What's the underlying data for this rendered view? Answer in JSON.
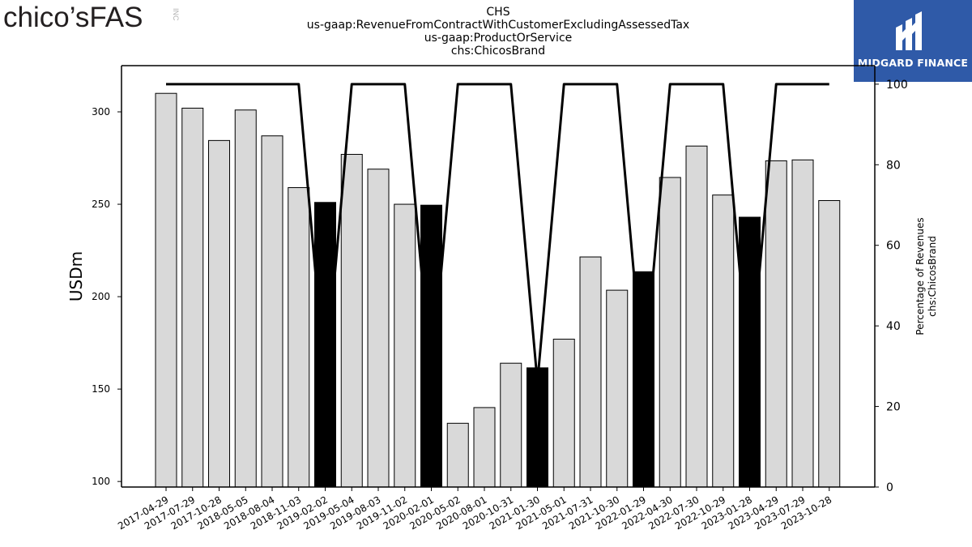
{
  "header": {
    "logo_text": "chico’sFAS",
    "logo_suffix": "INC",
    "title_lines": [
      "CHS",
      "us-gaap:RevenueFromContractWithCustomerExcludingAssessedTax",
      "us-gaap:ProductOrService",
      "chs:ChicosBrand"
    ]
  },
  "watermark": {
    "text": "MIDGARD FINANCE"
  },
  "colors": {
    "bar_default": "#d9d9d9",
    "bar_highlight": "#000000",
    "line": "#000000",
    "watermark_bg": "#2f5aa8"
  },
  "chart_data": {
    "type": "bar",
    "ylabel": "USDm",
    "y2label_lines": [
      "Percentage of Revenues",
      "chs:ChicosBrand"
    ],
    "ylim": [
      97,
      325
    ],
    "y2lim": [
      0,
      104.6
    ],
    "yticks": [
      100,
      150,
      200,
      250,
      300
    ],
    "y2ticks": [
      0,
      20,
      40,
      60,
      80,
      100
    ],
    "categories": [
      "2017-04-29",
      "2017-07-29",
      "2017-10-28",
      "2018-05-05",
      "2018-08-04",
      "2018-11-03",
      "2019-02-02",
      "2019-05-04",
      "2019-08-03",
      "2019-11-02",
      "2020-02-01",
      "2020-05-02",
      "2020-08-01",
      "2020-10-31",
      "2021-01-30",
      "2021-05-01",
      "2021-07-31",
      "2021-10-30",
      "2022-01-29",
      "2022-04-30",
      "2022-07-30",
      "2022-10-29",
      "2023-01-28",
      "2023-04-29",
      "2023-07-29",
      "2023-10-28"
    ],
    "series": [
      {
        "type": "bar",
        "values": [
          310,
          302,
          284.5,
          301,
          287,
          259,
          251,
          277,
          269,
          250,
          249.5,
          131.5,
          140,
          164,
          161.5,
          177,
          221.5,
          203.5,
          213.5,
          264.5,
          281.5,
          255,
          243,
          273.5,
          274,
          252
        ],
        "highlight": [
          false,
          false,
          false,
          false,
          false,
          false,
          true,
          false,
          false,
          false,
          true,
          false,
          false,
          false,
          true,
          false,
          false,
          false,
          true,
          false,
          false,
          false,
          true,
          false,
          false,
          false
        ]
      },
      {
        "type": "line",
        "axis": "right",
        "values": [
          100,
          100,
          100,
          100,
          100,
          100,
          26,
          100,
          100,
          100,
          26,
          100,
          100,
          100,
          26,
          100,
          100,
          100,
          26,
          100,
          100,
          100,
          26,
          100,
          100,
          100
        ]
      }
    ]
  }
}
